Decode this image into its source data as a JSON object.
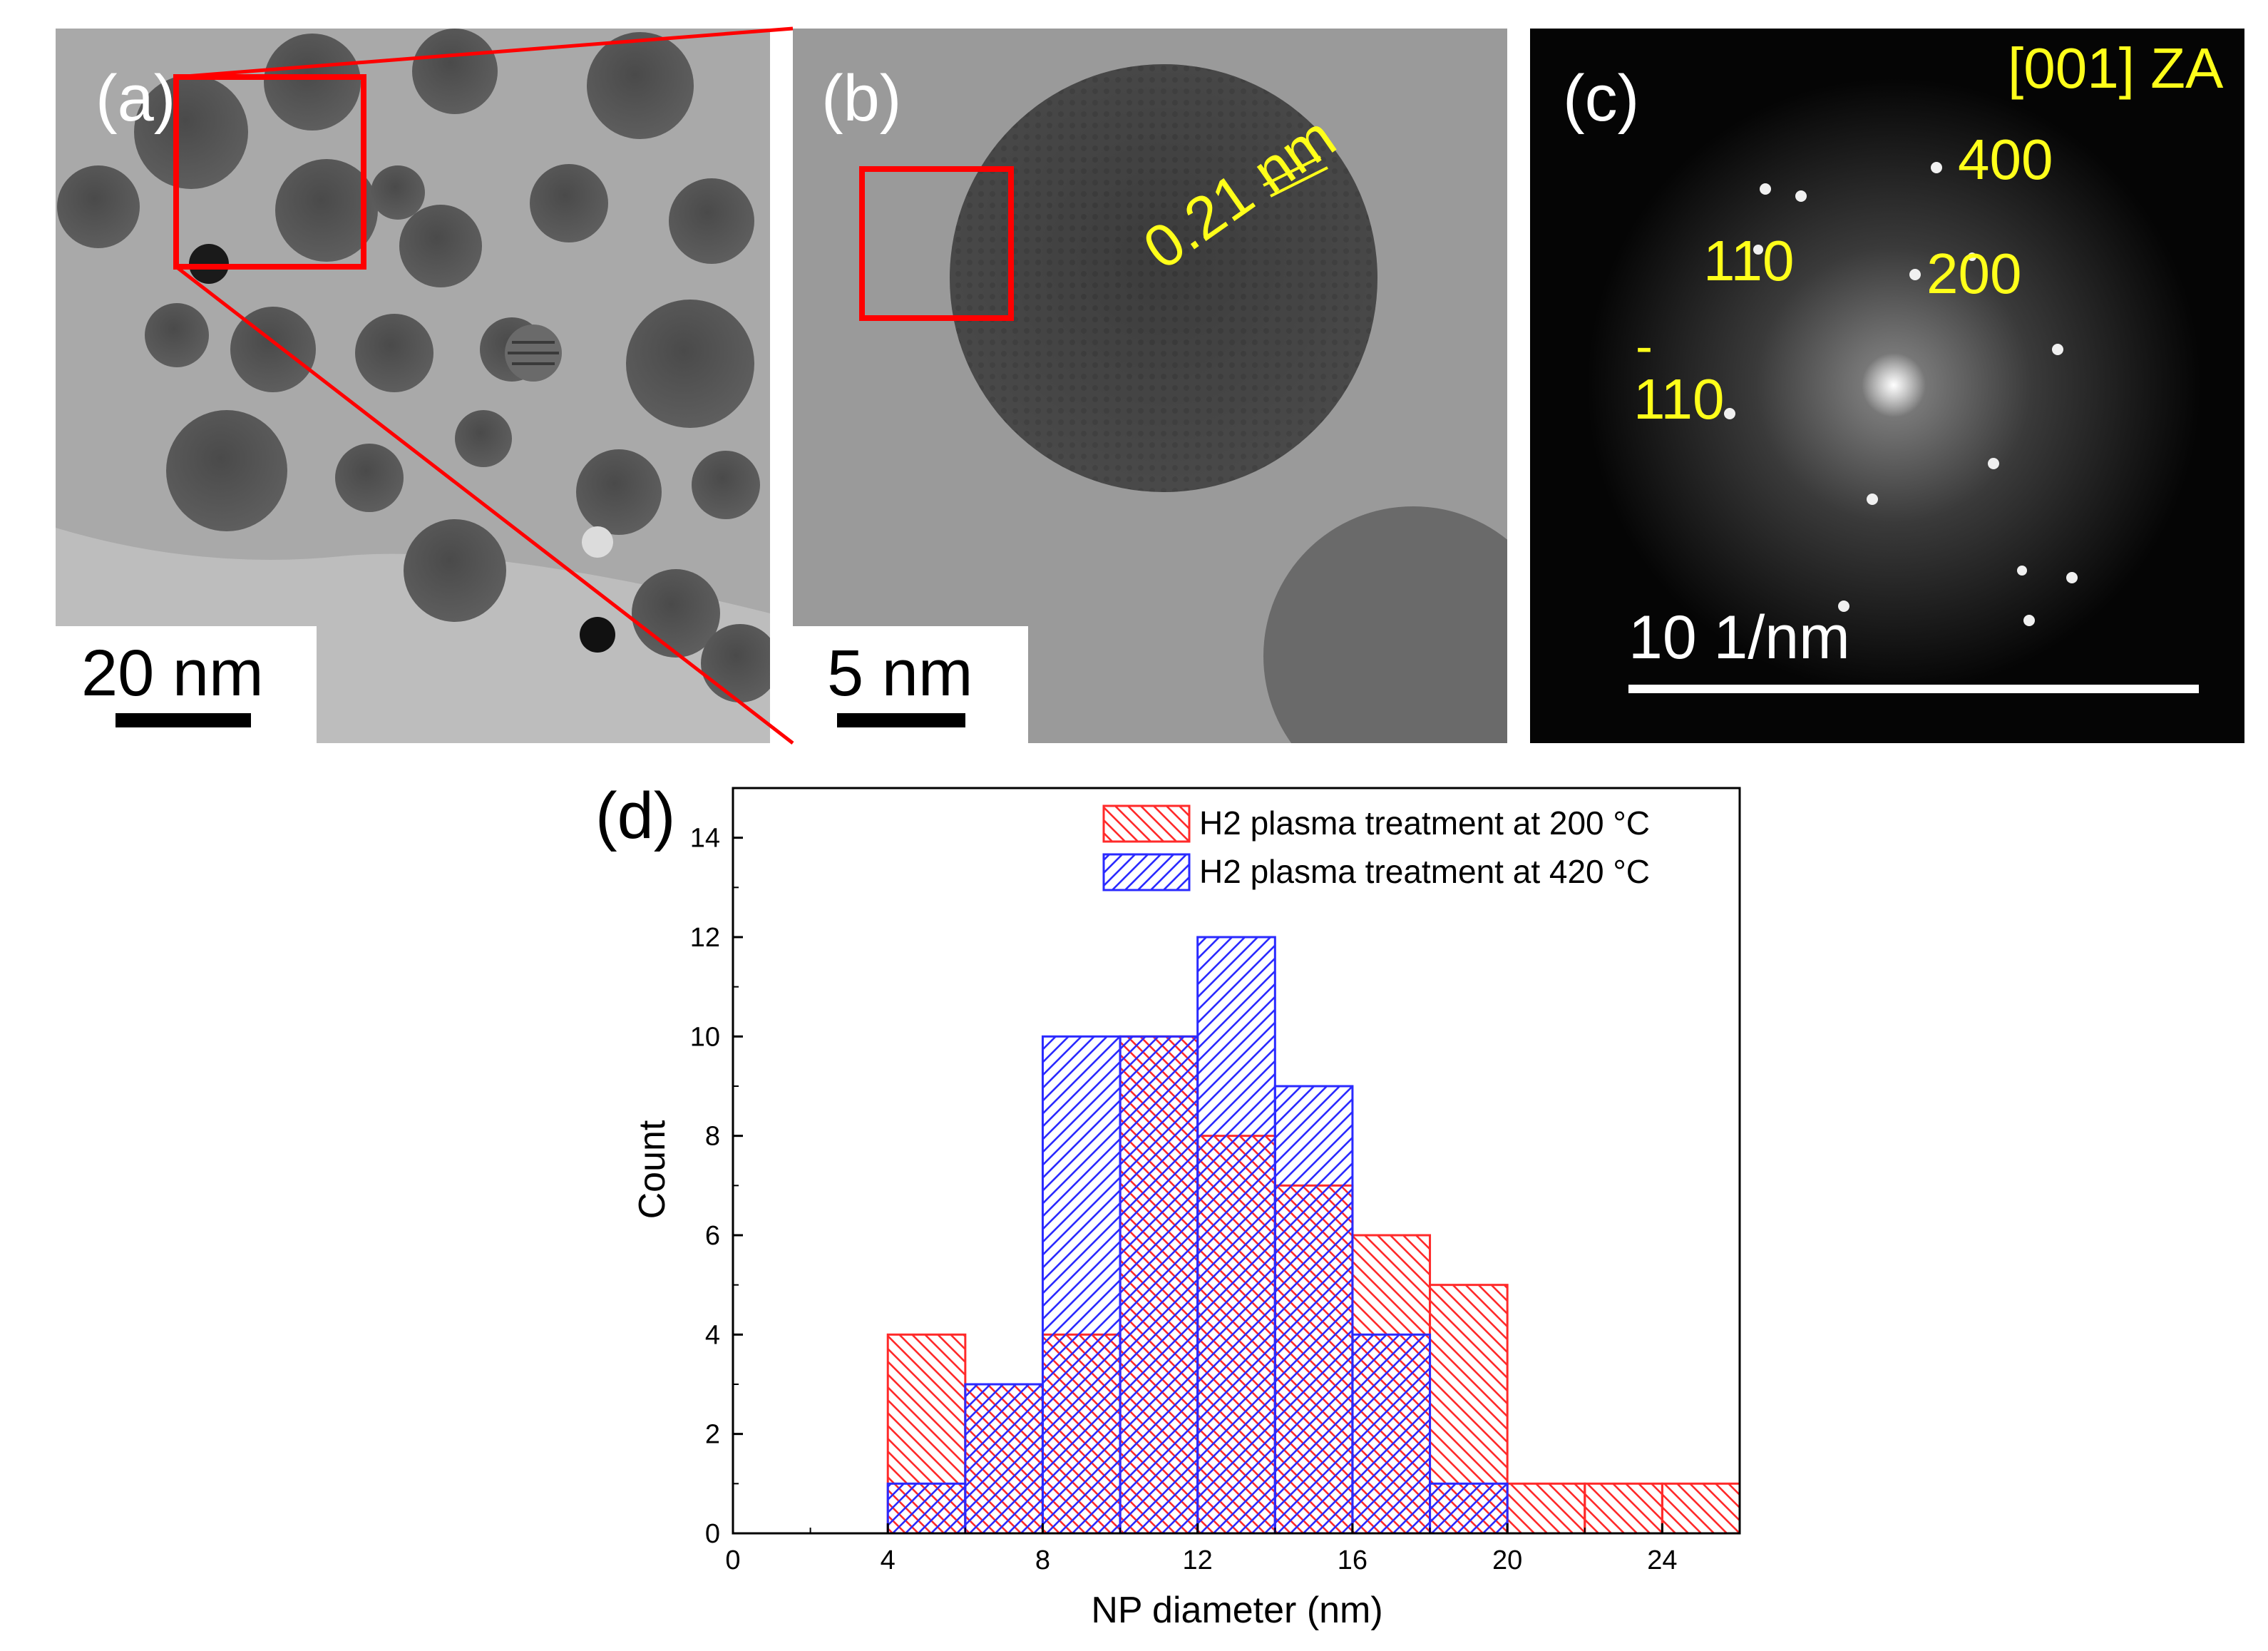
{
  "panels": {
    "a": {
      "label": "(a)",
      "scale": "20 nm"
    },
    "b": {
      "label": "(b)",
      "scale": "5 nm",
      "spacing": "0.21 nm"
    },
    "c": {
      "label": "(c)",
      "zone_axis": "[001] ZA",
      "scale": "10  1/nm",
      "spots": {
        "s400": "400",
        "s110": "110",
        "s200": "200",
        "sbar110": "110",
        "bar_mark": "-"
      }
    },
    "d": {
      "label": "(d)"
    }
  },
  "colors": {
    "series_200": "#ff2a2a",
    "series_420": "#2a2aff",
    "zoom_box": "#ff0000",
    "annotation": "#ffff1a"
  },
  "chart_data": {
    "type": "histogram",
    "xlabel": "NP diameter (nm)",
    "ylabel": "Count",
    "xlim": [
      0,
      26
    ],
    "ylim": [
      0,
      15
    ],
    "xticks": [
      0,
      4,
      8,
      12,
      16,
      20,
      24
    ],
    "yticks": [
      0,
      2,
      4,
      6,
      8,
      10,
      12,
      14
    ],
    "bin_width": 2,
    "legend_position": "top-right",
    "series": [
      {
        "name": "H2 plasma treatment at 200 °C",
        "color": "#ff2a2a",
        "hatch": "backslash",
        "bins": [
          4,
          6,
          8,
          10,
          12,
          14,
          16,
          18,
          20,
          22,
          24
        ],
        "values": [
          4,
          3,
          4,
          10,
          8,
          7,
          6,
          5,
          1,
          1,
          1
        ]
      },
      {
        "name": "H2 plasma treatment at 420 °C",
        "color": "#2a2aff",
        "hatch": "slash",
        "bins": [
          4,
          6,
          8,
          10,
          12,
          14,
          16,
          18
        ],
        "values": [
          1,
          3,
          10,
          10,
          12,
          9,
          4,
          1
        ]
      }
    ]
  }
}
